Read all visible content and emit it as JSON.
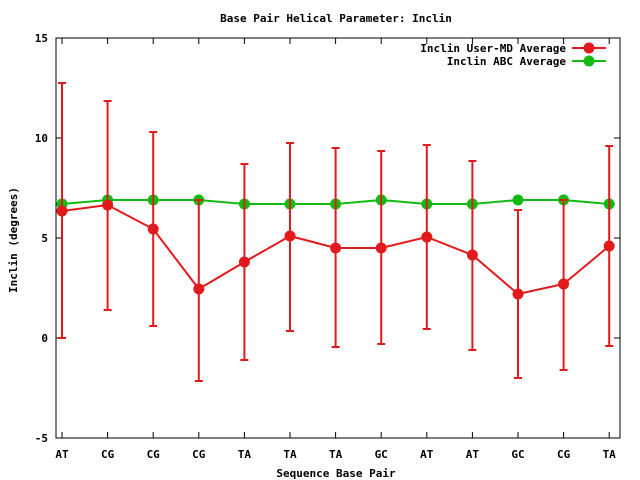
{
  "chart_data": {
    "type": "line",
    "title": "Base Pair Helical Parameter: Inclin",
    "xlabel": "Sequence Base Pair",
    "ylabel": "Inclin (degrees)",
    "categories": [
      "AT",
      "CG",
      "CG",
      "CG",
      "TA",
      "TA",
      "TA",
      "GC",
      "AT",
      "AT",
      "GC",
      "CG",
      "TA"
    ],
    "ylim": [
      -5,
      15
    ],
    "yticks": [
      -5,
      0,
      5,
      10,
      15
    ],
    "legend_position": "top-right",
    "grid": false,
    "series": [
      {
        "name": "Inclin User-MD Average",
        "color": "#e31a1c",
        "values": [
          6.35,
          6.65,
          5.45,
          2.45,
          3.8,
          5.1,
          4.5,
          4.5,
          5.05,
          4.15,
          2.2,
          2.7,
          4.6
        ],
        "error_low": [
          0.0,
          1.4,
          0.6,
          -2.15,
          -1.1,
          0.35,
          -0.45,
          -0.3,
          0.45,
          -0.6,
          -2.0,
          -1.6,
          -0.4
        ],
        "error_high": [
          12.75,
          11.85,
          10.3,
          6.9,
          8.7,
          9.75,
          9.5,
          9.35,
          9.65,
          8.85,
          6.4,
          6.9,
          9.6
        ]
      },
      {
        "name": "Inclin ABC Average",
        "color": "#11bb11",
        "values": [
          6.7,
          6.9,
          6.9,
          6.9,
          6.7,
          6.7,
          6.7,
          6.9,
          6.7,
          6.7,
          6.9,
          6.9,
          6.7
        ]
      }
    ]
  }
}
